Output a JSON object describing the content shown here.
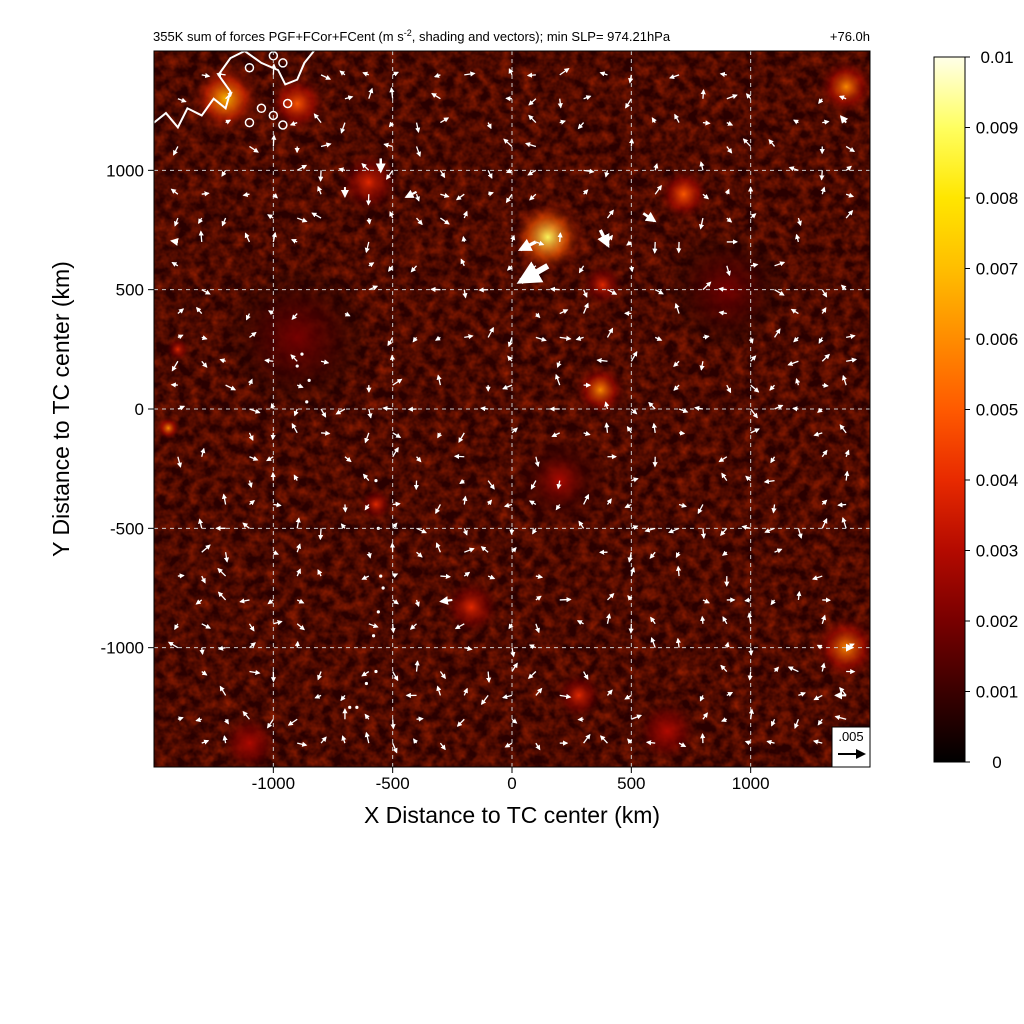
{
  "chart_data": {
    "type": "heatmap",
    "title": "355K sum of forces PGF+FCor+FCent (m s-2, shading and vectors); min SLP= 974.21hPa",
    "title_parts": {
      "before_sup": "355K sum of forces PGF+FCor+FCent (m s",
      "sup": "-2",
      "after_sup": ", shading and vectors); min SLP= 974.21hPa"
    },
    "time_label": "+76.0h",
    "xlabel": "X Distance to TC center (km)",
    "ylabel": "Y Distance to TC center (km)",
    "xlim": [
      -1500,
      1500
    ],
    "ylim": [
      -1500,
      1500
    ],
    "x_ticks": [
      -1000,
      -500,
      0,
      500,
      1000
    ],
    "y_ticks": [
      -1000,
      -500,
      0,
      500,
      1000
    ],
    "x_tick_labels": [
      "-1000",
      "-500",
      "0",
      "500",
      "1000"
    ],
    "y_tick_labels": [
      "-1000",
      "-500",
      "0",
      "500",
      "1000"
    ],
    "grid": true,
    "grid_style": "dashed",
    "colorbar": {
      "min": 0,
      "max": 0.01,
      "tick_values": [
        0,
        0.001,
        0.002,
        0.003,
        0.004,
        0.005,
        0.006,
        0.007,
        0.008,
        0.009,
        0.01
      ],
      "tick_labels": [
        "0",
        "0.001",
        "0.002",
        "0.003",
        "0.004",
        "0.005",
        "0.006",
        "0.007",
        "0.008",
        "0.009",
        "0.01"
      ],
      "colormap": [
        "#000000",
        "#3a0000",
        "#780000",
        "#b40a00",
        "#e82a00",
        "#ff5a00",
        "#ff8c00",
        "#ffbe00",
        "#ffe600",
        "#ffff60",
        "#ffffe8"
      ],
      "position": "right"
    },
    "reference_vector": {
      "label": ".005",
      "magnitude": 0.005,
      "position": "bottom-right"
    },
    "hotspots": [
      {
        "x": 150,
        "y": 720,
        "radius": 150,
        "intensity": 0.009
      },
      {
        "x": 380,
        "y": 520,
        "radius": 90,
        "intensity": 0.004
      },
      {
        "x": 370,
        "y": 80,
        "radius": 110,
        "intensity": 0.006
      },
      {
        "x": -1200,
        "y": 1300,
        "radius": 150,
        "intensity": 0.007
      },
      {
        "x": -900,
        "y": 1280,
        "radius": 120,
        "intensity": 0.005
      },
      {
        "x": -600,
        "y": 950,
        "radius": 130,
        "intensity": 0.004
      },
      {
        "x": 720,
        "y": 900,
        "radius": 110,
        "intensity": 0.005
      },
      {
        "x": 1400,
        "y": 1350,
        "radius": 120,
        "intensity": 0.006
      },
      {
        "x": 1400,
        "y": -1000,
        "radius": 140,
        "intensity": 0.006
      },
      {
        "x": -1440,
        "y": -80,
        "radius": 50,
        "intensity": 0.006
      },
      {
        "x": -1400,
        "y": 250,
        "radius": 50,
        "intensity": 0.004
      },
      {
        "x": -170,
        "y": -830,
        "radius": 120,
        "intensity": 0.004
      },
      {
        "x": -570,
        "y": -400,
        "radius": 70,
        "intensity": 0.004
      },
      {
        "x": 280,
        "y": -1200,
        "radius": 100,
        "intensity": 0.004
      },
      {
        "x": -1100,
        "y": -1400,
        "radius": 120,
        "intensity": 0.003
      },
      {
        "x": 200,
        "y": -300,
        "radius": 200,
        "intensity": 0.0025
      },
      {
        "x": 900,
        "y": 500,
        "radius": 250,
        "intensity": 0.0015
      },
      {
        "x": -900,
        "y": 300,
        "radius": 300,
        "intensity": 0.0015
      },
      {
        "x": 650,
        "y": -1350,
        "radius": 130,
        "intensity": 0.003
      }
    ],
    "vectors": [
      {
        "x": 150,
        "y": 600,
        "u": -0.0052,
        "v": -0.003
      },
      {
        "x": 100,
        "y": 700,
        "u": -0.003,
        "v": -0.0015
      },
      {
        "x": 370,
        "y": 750,
        "u": 0.0015,
        "v": -0.003
      },
      {
        "x": 550,
        "y": 820,
        "u": 0.0022,
        "v": -0.0015
      },
      {
        "x": -550,
        "y": 1050,
        "u": 0.0,
        "v": -0.0025
      },
      {
        "x": -400,
        "y": 910,
        "u": -0.002,
        "v": -0.001
      },
      {
        "x": -700,
        "y": 930,
        "u": 0.0,
        "v": -0.0018
      },
      {
        "x": -250,
        "y": -800,
        "u": -0.0022,
        "v": -0.0003
      },
      {
        "x": 1400,
        "y": -1200,
        "u": -0.002,
        "v": 0.0
      },
      {
        "x": 1400,
        "y": -1000,
        "u": 0.0012,
        "v": 0.0
      },
      {
        "x": -1400,
        "y": 700,
        "u": -0.0012,
        "v": 0.0002
      },
      {
        "x": 1400,
        "y": 1200,
        "u": -0.001,
        "v": 0.0012
      }
    ],
    "coastline": {
      "color": "#ffffff",
      "points": [
        [
          -1500,
          1200
        ],
        [
          -1450,
          1240
        ],
        [
          -1400,
          1180
        ],
        [
          -1360,
          1260
        ],
        [
          -1300,
          1230
        ],
        [
          -1250,
          1300
        ],
        [
          -1200,
          1260
        ],
        [
          -1180,
          1330
        ],
        [
          -1230,
          1400
        ],
        [
          -1180,
          1470
        ],
        [
          -1120,
          1500
        ],
        [
          -1050,
          1450
        ],
        [
          -980,
          1420
        ],
        [
          -950,
          1360
        ],
        [
          -900,
          1380
        ],
        [
          -870,
          1450
        ],
        [
          -830,
          1500
        ]
      ],
      "islands": [
        [
          -1050,
          1260
        ],
        [
          -1000,
          1230
        ],
        [
          -960,
          1190
        ],
        [
          -1100,
          1200
        ],
        [
          -940,
          1280
        ],
        [
          -960,
          1450
        ],
        [
          -1000,
          1480
        ],
        [
          -1100,
          1430
        ]
      ],
      "dots": [
        [
          -880,
          230
        ],
        [
          -900,
          180
        ],
        [
          -850,
          120
        ],
        [
          -860,
          30
        ],
        [
          -570,
          -300
        ],
        [
          -560,
          -500
        ],
        [
          -550,
          -700
        ],
        [
          -540,
          -750
        ],
        [
          -560,
          -850
        ],
        [
          -580,
          -950
        ],
        [
          -570,
          -1100
        ],
        [
          -610,
          -1150
        ],
        [
          -650,
          -1250
        ],
        [
          -680,
          -1250
        ]
      ]
    }
  }
}
